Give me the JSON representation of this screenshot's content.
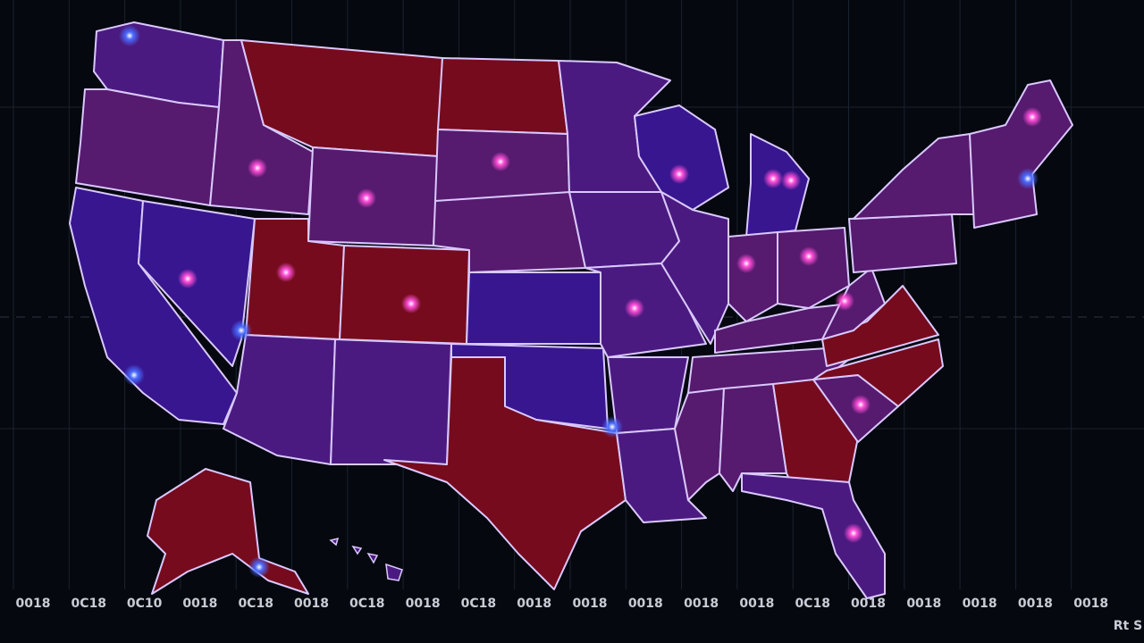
{
  "axis_labels": [
    "0018",
    "0C18",
    "0C10",
    "0018",
    "0C18",
    "0018",
    "0C18",
    "0018",
    "0C18",
    "0018",
    "0018",
    "0018",
    "0018",
    "0018",
    "0C18",
    "0018",
    "0018",
    "0018",
    "0018",
    "0018"
  ],
  "corner_label": "Rt S"
}
